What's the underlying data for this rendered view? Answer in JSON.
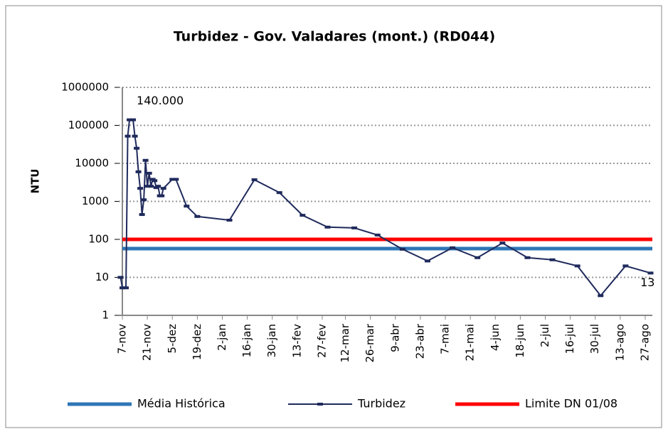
{
  "chart_data": {
    "type": "line",
    "title": "Turbidez - Gov. Valadares (mont.) (RD044)",
    "y_label": "NTU",
    "log_scale": true,
    "grid": true,
    "ylim": [
      1,
      1000000
    ],
    "yticks": [
      1,
      10,
      100,
      1000,
      10000,
      100000,
      1000000
    ],
    "xlim": [
      "5-nov",
      "31-ago"
    ],
    "xticks": [
      "7-nov",
      "21-nov",
      "5-dez",
      "19-dez",
      "2-jan",
      "16-jan",
      "30-jan",
      "13-fev",
      "27-fev",
      "12-mar",
      "26-mar",
      "9-abr",
      "23-abr",
      "7-mai",
      "21-mai",
      "4-jun",
      "18-jun",
      "2-jul",
      "16-jul",
      "30-jul",
      "13-ago",
      "27-ago"
    ],
    "x": [
      "6-nov",
      "7-nov",
      "9-nov",
      "10-nov",
      "11-nov",
      "13-nov",
      "14-nov",
      "15-nov",
      "16-nov",
      "17-nov",
      "18-nov",
      "19-nov",
      "20-nov",
      "21-nov",
      "22-nov",
      "23-nov",
      "24-nov",
      "25-nov",
      "26-nov",
      "27-nov",
      "28-nov",
      "29-nov",
      "30-nov",
      "5-dez",
      "7-dez",
      "13-dez",
      "19-dez",
      "6-jan",
      "20-jan",
      "3-fev",
      "16-fev",
      "2-mar",
      "17-mar",
      "30-mar",
      "13-abr",
      "27-abr",
      "11-mai",
      "25-mai",
      "8-jun",
      "22-jun",
      "6-jul",
      "20-jul",
      "2-ago",
      "16-ago",
      "30-ago"
    ],
    "series": [
      {
        "name": "Turbidez",
        "color": "#1f2a5c",
        "values": [
          10,
          5.3,
          5.3,
          52000,
          140000,
          140000,
          52000,
          25000,
          6000,
          2200,
          450,
          1100,
          12000,
          2500,
          5500,
          2500,
          3800,
          3500,
          2300,
          2500,
          1400,
          1400,
          2200,
          3800,
          3800,
          750,
          400,
          320,
          3700,
          1700,
          430,
          210,
          200,
          130,
          55,
          27,
          60,
          33,
          80,
          33,
          29,
          20,
          3.3,
          20,
          13
        ],
        "value_labels": [
          null,
          null,
          null,
          null,
          "140.000",
          null,
          null,
          null,
          null,
          null,
          null,
          null,
          null,
          null,
          null,
          null,
          null,
          null,
          null,
          null,
          null,
          null,
          null,
          null,
          null,
          null,
          null,
          null,
          null,
          null,
          null,
          null,
          null,
          null,
          null,
          null,
          null,
          null,
          null,
          null,
          null,
          null,
          null,
          null,
          "13"
        ]
      }
    ],
    "reference_lines": [
      {
        "name": "Média Histórica",
        "color": "#2e75b6",
        "value": 57
      },
      {
        "name": "Limite DN 01/08",
        "color": "#ff0000",
        "value": 100
      }
    ]
  }
}
